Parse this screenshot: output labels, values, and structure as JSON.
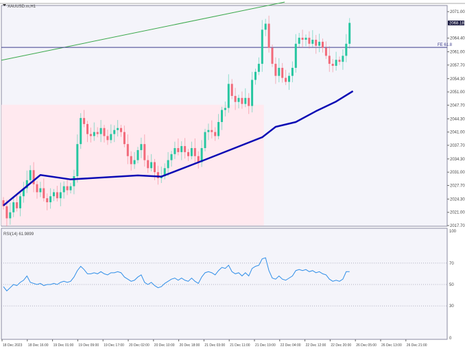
{
  "window": {
    "symbol_title": "XAUUSD.m,H1"
  },
  "colors": {
    "bull": "#26c6a0",
    "bear": "#f26a7a",
    "ma": "#0a0ab4",
    "trend": "#3aa84a",
    "fe": "#3c3c8c",
    "zone": "#ffe9ef",
    "rsi": "#2e8ee8",
    "bg": "#f4f4fa"
  },
  "price_axis": {
    "ticks": [
      "2071.00",
      "2064.40",
      "2061.00",
      "2057.70",
      "2054.30",
      "2051.00",
      "2047.70",
      "2044.30",
      "2041.00",
      "2037.70",
      "2034.30",
      "2031.00",
      "2027.70",
      "2024.30",
      "2021.00",
      "2017.70"
    ],
    "min": 2017.7,
    "max": 2071.0,
    "current_price": "2068.18"
  },
  "fe_line": {
    "label": "FE 61.8",
    "price": 2062.1
  },
  "trendline": {
    "from": {
      "index": -0.6,
      "price": 2058.9
    },
    "to": {
      "index": 83.7,
      "price": 2073.4
    }
  },
  "zone": {
    "from_index": -0.6,
    "to_index": 77.5,
    "top_price": 2047.8
  },
  "time_axis": [
    "18 Dec 2023",
    "18 Dec 16:00",
    "19 Dec 01:00",
    "19 Dec 09:00",
    "19 Dec 17:00",
    "20 Dec 02:00",
    "20 Dec 10:00",
    "20 Dec 18:00",
    "21 Dec 03:00",
    "21 Dec 11:00",
    "21 Dec 19:00",
    "22 Dec 04:00",
    "22 Dec 12:00",
    "22 Dec 20:00",
    "26 Dec 05:00",
    "26 Dec 13:00",
    "26 Dec 21:00"
  ],
  "chart_data": {
    "type": "candlestick",
    "open_first": 2024.0,
    "closes": [
      2022.5,
      2019.5,
      2021,
      2023.5,
      2022,
      2025,
      2027,
      2029,
      2031.5,
      2028,
      2026,
      2027,
      2024.5,
      2023.5,
      2025,
      2026,
      2024.5,
      2026,
      2027.5,
      2026.5,
      2027.5,
      2030,
      2038,
      2044.5,
      2043,
      2040.5,
      2040,
      2041,
      2040.5,
      2042,
      2040,
      2039,
      2040.5,
      2041.5,
      2042,
      2041,
      2038,
      2035,
      2033,
      2034,
      2036.5,
      2038,
      2034,
      2032,
      2033.5,
      2031,
      2029.5,
      2030,
      2032,
      2034,
      2035.5,
      2037,
      2036,
      2037.5,
      2036,
      2035,
      2037,
      2035,
      2033.5,
      2037,
      2041,
      2041.5,
      2041,
      2040,
      2043.5,
      2046.5,
      2047,
      2053,
      2050,
      2048.5,
      2049.5,
      2048,
      2049.5,
      2047.5,
      2054,
      2056,
      2058,
      2066.5,
      2068,
      2062,
      2058,
      2055,
      2057,
      2054.5,
      2053.5,
      2055,
      2057,
      2063,
      2064.5,
      2064,
      2064.5,
      2063,
      2064,
      2062.5,
      2063.5,
      2062,
      2060,
      2058,
      2057.5,
      2059,
      2058.5,
      2060,
      2063,
      2068.2
    ],
    "ma": {
      "indices": [
        0,
        11,
        20,
        40,
        47,
        60,
        77,
        81,
        87,
        93,
        99,
        104
      ],
      "prices": [
        2022.7,
        2030.3,
        2029.2,
        2030.2,
        2029.9,
        2034.1,
        2039.7,
        2042.3,
        2043.5,
        2046.2,
        2048.6,
        2051.2
      ]
    }
  },
  "rsi": {
    "label": "RSI(14) 61.9899",
    "ticks": [
      "100",
      "70",
      "50",
      "30",
      "0"
    ],
    "levels": [
      70,
      50,
      30
    ],
    "values": [
      48,
      44,
      47,
      50,
      49,
      52,
      54,
      58,
      52,
      51,
      50,
      51,
      49,
      50,
      50,
      51,
      50,
      52,
      53,
      52,
      53,
      57,
      63,
      67,
      64,
      60,
      60,
      61,
      60,
      62,
      60,
      59,
      61,
      61,
      62,
      61,
      57,
      55,
      53,
      54,
      57,
      59,
      52,
      50,
      52,
      49,
      47,
      48,
      51,
      53,
      55,
      56,
      54,
      56,
      54,
      53,
      56,
      53,
      51,
      57,
      61,
      62,
      61,
      59,
      63,
      66,
      65,
      68,
      62,
      60,
      61,
      58,
      61,
      58,
      65,
      67,
      68,
      74,
      75,
      63,
      56,
      55,
      58,
      55,
      54,
      56,
      58,
      63,
      64,
      63,
      64,
      62,
      63,
      61,
      62,
      60,
      59,
      55,
      53,
      54,
      53,
      55,
      62,
      62
    ]
  }
}
